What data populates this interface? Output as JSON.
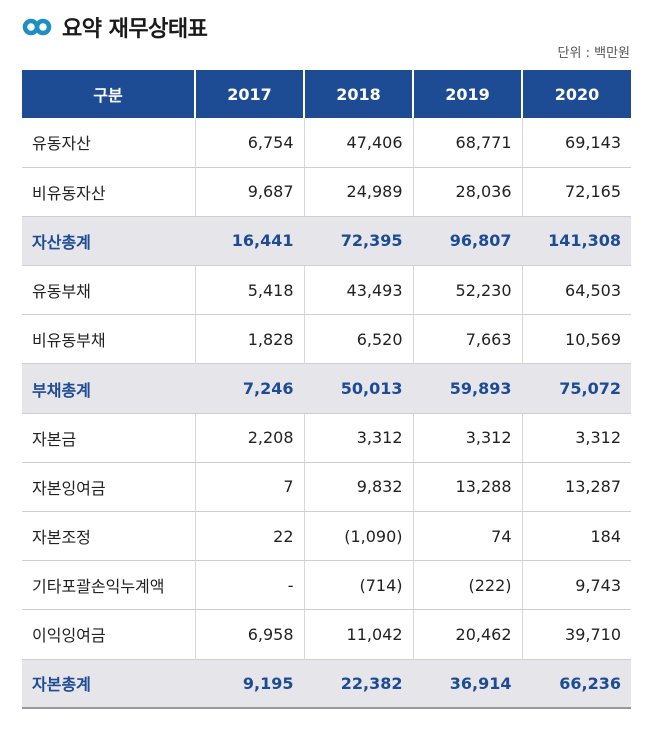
{
  "title": "요약 재무상태표",
  "unit_label": "단위 : 백만원",
  "icon": "infinity-logo-icon",
  "colors": {
    "header_bg": "#1d4b94",
    "total_bg": "#e6e6ea",
    "total_text": "#1d4b94",
    "logo": "#1d8fc0"
  },
  "table": {
    "headers": [
      "구분",
      "2017",
      "2018",
      "2019",
      "2020"
    ],
    "rows": [
      {
        "label": "유동자산",
        "values": [
          "6,754",
          "47,406",
          "68,771",
          "69,143"
        ],
        "total": false
      },
      {
        "label": "비유동자산",
        "values": [
          "9,687",
          "24,989",
          "28,036",
          "72,165"
        ],
        "total": false
      },
      {
        "label": "자산총계",
        "values": [
          "16,441",
          "72,395",
          "96,807",
          "141,308"
        ],
        "total": true
      },
      {
        "label": "유동부채",
        "values": [
          "5,418",
          "43,493",
          "52,230",
          "64,503"
        ],
        "total": false
      },
      {
        "label": "비유동부채",
        "values": [
          "1,828",
          "6,520",
          "7,663",
          "10,569"
        ],
        "total": false
      },
      {
        "label": "부채총계",
        "values": [
          "7,246",
          "50,013",
          "59,893",
          "75,072"
        ],
        "total": true
      },
      {
        "label": "자본금",
        "values": [
          "2,208",
          "3,312",
          "3,312",
          "3,312"
        ],
        "total": false
      },
      {
        "label": "자본잉여금",
        "values": [
          "7",
          "9,832",
          "13,288",
          "13,287"
        ],
        "total": false
      },
      {
        "label": "자본조정",
        "values": [
          "22",
          "(1,090)",
          "74",
          "184"
        ],
        "total": false
      },
      {
        "label": "기타포괄손익누계액",
        "values": [
          "-",
          "(714)",
          "(222)",
          "9,743"
        ],
        "total": false
      },
      {
        "label": "이익잉여금",
        "values": [
          "6,958",
          "11,042",
          "20,462",
          "39,710"
        ],
        "total": false
      },
      {
        "label": "자본총계",
        "values": [
          "9,195",
          "22,382",
          "36,914",
          "66,236"
        ],
        "total": true
      }
    ]
  }
}
